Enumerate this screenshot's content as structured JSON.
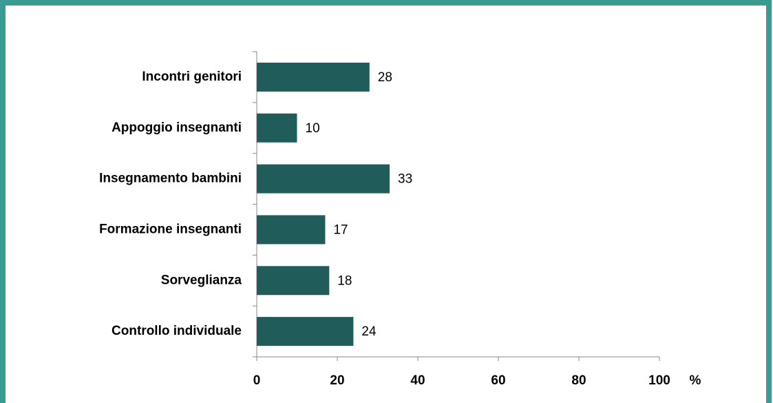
{
  "chart_data": {
    "type": "bar",
    "orientation": "horizontal",
    "categories": [
      "Incontri genitori",
      "Appoggio insegnanti",
      "Insegnamento bambini",
      "Formazione insegnanti",
      "Sorveglianza",
      "Controllo individuale"
    ],
    "values": [
      28,
      10,
      33,
      17,
      18,
      24
    ],
    "color": "#1f5c5a",
    "x_label": "%",
    "xlim": [
      0,
      100
    ],
    "xticks": [
      0,
      20,
      40,
      60,
      80,
      100
    ],
    "grid": false
  }
}
